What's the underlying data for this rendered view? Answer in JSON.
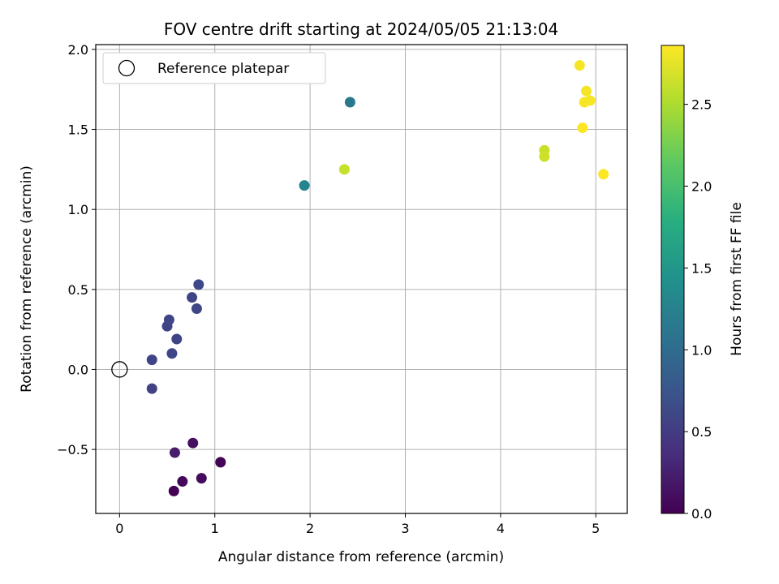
{
  "chart_data": {
    "type": "scatter",
    "title": "FOV centre drift starting at 2024/05/05 21:13:04",
    "xlabel": "Angular distance from reference (arcmin)",
    "ylabel": "Rotation from reference (arcmin)",
    "xlim": [
      -0.25,
      5.33
    ],
    "ylim": [
      -0.9,
      2.03
    ],
    "x_ticks": [
      0,
      1,
      2,
      3,
      4,
      5
    ],
    "x_tick_labels": [
      "0",
      "1",
      "2",
      "3",
      "4",
      "5"
    ],
    "y_ticks": [
      -0.5,
      0.0,
      0.5,
      1.0,
      1.5,
      2.0
    ],
    "y_tick_labels": [
      "−0.5",
      "0.0",
      "0.5",
      "1.0",
      "1.5",
      "2.0"
    ],
    "grid": true,
    "legend": {
      "placement": "top-left",
      "entries": [
        {
          "label": "Reference platepar",
          "marker": "open-circle"
        }
      ]
    },
    "reference_point": {
      "x": 0,
      "y": 0
    },
    "colorbar": {
      "label": "Hours from first FF file",
      "range": [
        0,
        2.86
      ],
      "ticks": [
        0,
        0.5,
        1,
        1.5,
        2,
        2.5
      ],
      "tick_labels": [
        "0.0",
        "0.5",
        "1.0",
        "1.5",
        "2.0",
        "2.5"
      ],
      "colormap": "viridis"
    },
    "points": [
      {
        "x": 0.57,
        "y": -0.76,
        "c": 0.0
      },
      {
        "x": 0.66,
        "y": -0.7,
        "c": 0.05
      },
      {
        "x": 0.86,
        "y": -0.68,
        "c": 0.08
      },
      {
        "x": 1.06,
        "y": -0.58,
        "c": 0.02
      },
      {
        "x": 0.77,
        "y": -0.46,
        "c": 0.12
      },
      {
        "x": 0.58,
        "y": -0.52,
        "c": 0.22
      },
      {
        "x": 0.34,
        "y": -0.12,
        "c": 0.55
      },
      {
        "x": 0.34,
        "y": 0.06,
        "c": 0.58
      },
      {
        "x": 0.55,
        "y": 0.1,
        "c": 0.6
      },
      {
        "x": 0.6,
        "y": 0.19,
        "c": 0.58
      },
      {
        "x": 0.5,
        "y": 0.27,
        "c": 0.57
      },
      {
        "x": 0.52,
        "y": 0.31,
        "c": 0.59
      },
      {
        "x": 0.81,
        "y": 0.38,
        "c": 0.6
      },
      {
        "x": 0.76,
        "y": 0.45,
        "c": 0.58
      },
      {
        "x": 0.83,
        "y": 0.53,
        "c": 0.62
      },
      {
        "x": 1.94,
        "y": 1.15,
        "c": 1.3
      },
      {
        "x": 2.42,
        "y": 1.67,
        "c": 1.15
      },
      {
        "x": 2.36,
        "y": 1.25,
        "c": 2.62
      },
      {
        "x": 4.46,
        "y": 1.37,
        "c": 2.63
      },
      {
        "x": 4.46,
        "y": 1.33,
        "c": 2.65
      },
      {
        "x": 4.83,
        "y": 1.9,
        "c": 2.82
      },
      {
        "x": 4.9,
        "y": 1.74,
        "c": 2.82
      },
      {
        "x": 4.88,
        "y": 1.67,
        "c": 2.84
      },
      {
        "x": 4.94,
        "y": 1.68,
        "c": 2.83
      },
      {
        "x": 4.86,
        "y": 1.51,
        "c": 2.86
      },
      {
        "x": 5.08,
        "y": 1.22,
        "c": 2.85
      }
    ]
  }
}
